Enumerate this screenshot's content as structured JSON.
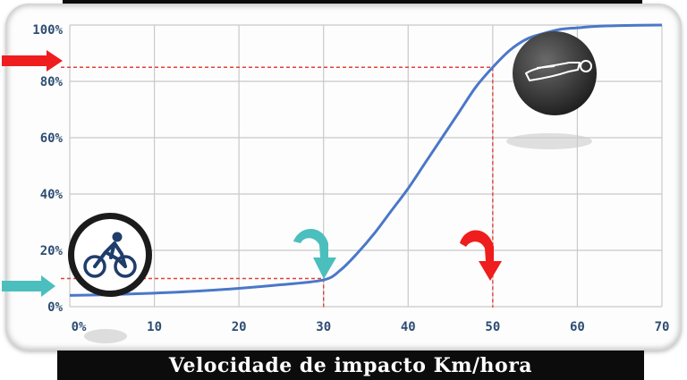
{
  "chart_data": {
    "type": "line",
    "title": "",
    "xlabel": "Velocidade de impacto Km/hora",
    "ylabel": "",
    "xlim": [
      0,
      70
    ],
    "ylim": [
      0,
      100
    ],
    "x_ticks": [
      "0%",
      "10",
      "20",
      "30",
      "40",
      "50",
      "60",
      "70"
    ],
    "y_ticks": [
      "0%",
      "20%",
      "40%",
      "60%",
      "80%",
      "100%"
    ],
    "grid": true,
    "series": [
      {
        "x": [
          0,
          5,
          10,
          15,
          20,
          25,
          30,
          32,
          34,
          36,
          38,
          40,
          42,
          44,
          46,
          48,
          50,
          52,
          54,
          56,
          58,
          60,
          62,
          65,
          70
        ],
        "y": [
          4,
          4.3,
          4.8,
          5.5,
          6.5,
          7.8,
          9.5,
          13,
          19,
          26,
          34,
          42,
          51,
          60,
          69,
          78,
          85,
          91,
          95,
          97,
          98.5,
          99,
          99.5,
          99.8,
          100
        ]
      }
    ],
    "reference_lines": [
      {
        "x": 30,
        "y": 10
      },
      {
        "x": 50,
        "y": 85
      }
    ],
    "colors": {
      "curve": "#4a78c8",
      "grid": "#c9c9c9",
      "ref_line": "#e0413c",
      "arrow_teal": "#4bbfbd",
      "arrow_red": "#ef1d1d",
      "tick_text": "#2d4d72"
    },
    "icons": [
      "cyclist-icon",
      "fallen-person-icon"
    ]
  }
}
